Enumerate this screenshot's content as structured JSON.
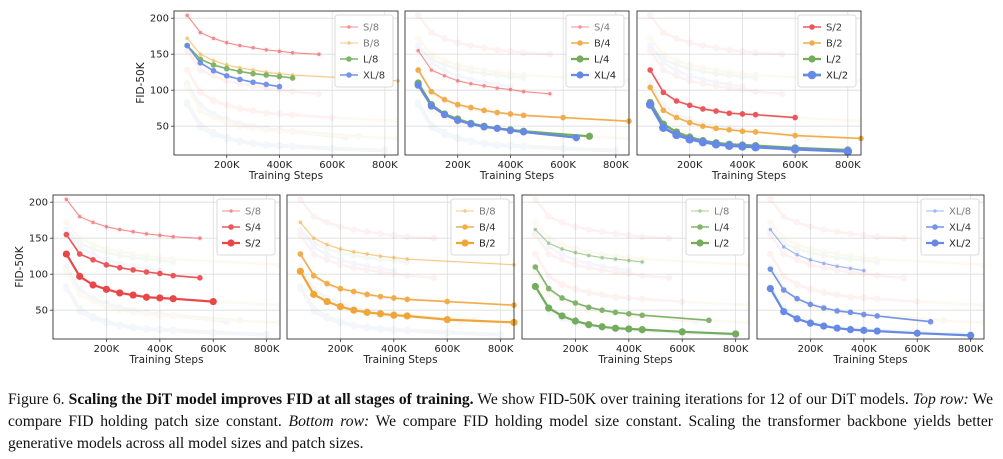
{
  "caption": {
    "figure_label": "Figure 6.",
    "title": "Scaling the DiT model improves FID at all stages of training.",
    "sentence1": "We show FID-50K over training iterations for 12 of our DiT models.",
    "top_row_label": "Top row:",
    "top_row_text": "We compare FID holding patch size constant.",
    "bottom_row_label": "Bottom row:",
    "bottom_row_text": "We compare FID holding model size constant. Scaling the transformer backbone yields better generative models across all model sizes and patch sizes."
  },
  "colors": {
    "S": "#e8474a",
    "B": "#f0a637",
    "L": "#73ad5c",
    "XL": "#6689e6",
    "grid": "#dddddd",
    "axis": "#333333"
  },
  "chart_data": [
    {
      "type": "line",
      "row": "top",
      "xlabel": "Training Steps",
      "ylabel": "FID-50K",
      "xlim": [
        0,
        850000
      ],
      "ylim": [
        10,
        210
      ],
      "xticks": [
        "200K",
        "400K",
        "600K",
        "800K"
      ],
      "yticks": [
        "50",
        "100",
        "150",
        "200"
      ],
      "legend": "top-right",
      "grid": true,
      "series": [
        {
          "name": "S/8",
          "color": "#e8474a",
          "weight": 1,
          "x": [
            50000,
            100000,
            150000,
            200000,
            250000,
            300000,
            350000,
            400000,
            450000,
            550000
          ],
          "y": [
            204,
            180,
            172,
            166,
            162,
            159,
            156,
            154,
            152,
            150
          ]
        },
        {
          "name": "B/8",
          "color": "#f0a637",
          "weight": 1,
          "x": [
            50000,
            100000,
            150000,
            200000,
            250000,
            300000,
            350000,
            400000,
            450000,
            850000
          ],
          "y": [
            172,
            150,
            141,
            135,
            131,
            128,
            125,
            123,
            121,
            113
          ]
        },
        {
          "name": "L/8",
          "color": "#73ad5c",
          "weight": 2,
          "x": [
            50000,
            100000,
            150000,
            200000,
            250000,
            300000,
            350000,
            400000,
            450000
          ],
          "y": [
            162,
            143,
            135,
            130,
            126,
            123,
            121,
            119,
            117
          ]
        },
        {
          "name": "XL/8",
          "color": "#6689e6",
          "weight": 2,
          "x": [
            50000,
            100000,
            150000,
            200000,
            250000,
            300000,
            350000,
            400000
          ],
          "y": [
            162,
            138,
            127,
            120,
            115,
            111,
            108,
            105
          ]
        }
      ]
    },
    {
      "type": "line",
      "row": "top",
      "xlabel": "Training Steps",
      "ylabel": "",
      "xlim": [
        0,
        850000
      ],
      "ylim": [
        10,
        210
      ],
      "xticks": [
        "200K",
        "400K",
        "600K",
        "800K"
      ],
      "yticks": [],
      "legend": "top-right",
      "grid": true,
      "series": [
        {
          "name": "S/4",
          "color": "#e8474a",
          "weight": 1,
          "x": [
            50000,
            100000,
            150000,
            200000,
            250000,
            300000,
            350000,
            400000,
            450000,
            550000
          ],
          "y": [
            155,
            128,
            120,
            113,
            109,
            106,
            103,
            101,
            98,
            95
          ]
        },
        {
          "name": "B/4",
          "color": "#f0a637",
          "weight": 2,
          "x": [
            50000,
            100000,
            150000,
            200000,
            250000,
            300000,
            350000,
            400000,
            450000,
            600000,
            850000
          ],
          "y": [
            128,
            98,
            87,
            80,
            76,
            72,
            69,
            67,
            65,
            62,
            57
          ]
        },
        {
          "name": "L/4",
          "color": "#73ad5c",
          "weight": 3,
          "x": [
            50000,
            100000,
            150000,
            200000,
            250000,
            300000,
            350000,
            400000,
            450000,
            700000
          ],
          "y": [
            110,
            80,
            67,
            60,
            54,
            50,
            47,
            45,
            43,
            36
          ]
        },
        {
          "name": "XL/4",
          "color": "#6689e6",
          "weight": 3,
          "x": [
            50000,
            100000,
            150000,
            200000,
            250000,
            300000,
            350000,
            400000,
            450000,
            650000
          ],
          "y": [
            107,
            78,
            66,
            58,
            53,
            49,
            47,
            44,
            42,
            34
          ]
        }
      ]
    },
    {
      "type": "line",
      "row": "top",
      "xlabel": "Training Steps",
      "ylabel": "",
      "xlim": [
        0,
        850000
      ],
      "ylim": [
        10,
        210
      ],
      "xticks": [
        "200K",
        "400K",
        "600K",
        "800K"
      ],
      "yticks": [],
      "legend": "top-right",
      "grid": true,
      "series": [
        {
          "name": "S/2",
          "color": "#e8474a",
          "weight": 2,
          "x": [
            50000,
            100000,
            150000,
            200000,
            250000,
            300000,
            350000,
            400000,
            450000,
            600000
          ],
          "y": [
            128,
            97,
            85,
            79,
            74,
            71,
            68,
            67,
            66,
            62
          ]
        },
        {
          "name": "B/2",
          "color": "#f0a637",
          "weight": 2,
          "x": [
            50000,
            100000,
            150000,
            200000,
            250000,
            300000,
            350000,
            400000,
            450000,
            600000,
            850000
          ],
          "y": [
            104,
            72,
            62,
            55,
            50,
            47,
            45,
            43,
            42,
            37,
            33
          ]
        },
        {
          "name": "L/2",
          "color": "#73ad5c",
          "weight": 3,
          "x": [
            50000,
            100000,
            150000,
            200000,
            250000,
            300000,
            350000,
            400000,
            450000,
            600000,
            800000
          ],
          "y": [
            83,
            53,
            42,
            35,
            30,
            27,
            25,
            24,
            23,
            20,
            17
          ]
        },
        {
          "name": "XL/2",
          "color": "#6689e6",
          "weight": 4,
          "x": [
            50000,
            100000,
            150000,
            200000,
            250000,
            300000,
            350000,
            400000,
            450000,
            600000,
            800000
          ],
          "y": [
            80,
            48,
            38,
            32,
            28,
            25,
            23,
            22,
            21,
            18,
            15
          ]
        }
      ]
    },
    {
      "type": "line",
      "row": "bottom",
      "xlabel": "Training Steps",
      "ylabel": "FID-50K",
      "xlim": [
        0,
        850000
      ],
      "ylim": [
        10,
        210
      ],
      "xticks": [
        "200K",
        "400K",
        "600K",
        "800K"
      ],
      "yticks": [
        "50",
        "100",
        "150",
        "200"
      ],
      "legend": "top-right",
      "grid": true,
      "series": [
        {
          "name": "S/8",
          "color": "#e8474a",
          "weight": 1,
          "x": [
            50000,
            100000,
            150000,
            200000,
            250000,
            300000,
            350000,
            400000,
            450000,
            550000
          ],
          "y": [
            204,
            180,
            172,
            166,
            162,
            159,
            156,
            154,
            152,
            150
          ]
        },
        {
          "name": "S/4",
          "color": "#e8474a",
          "weight": 2,
          "x": [
            50000,
            100000,
            150000,
            200000,
            250000,
            300000,
            350000,
            400000,
            450000,
            550000
          ],
          "y": [
            155,
            128,
            120,
            113,
            109,
            106,
            103,
            101,
            98,
            95
          ]
        },
        {
          "name": "S/2",
          "color": "#e8474a",
          "weight": 3,
          "x": [
            50000,
            100000,
            150000,
            200000,
            250000,
            300000,
            350000,
            400000,
            450000,
            600000
          ],
          "y": [
            128,
            97,
            85,
            79,
            74,
            71,
            68,
            67,
            66,
            62
          ]
        }
      ]
    },
    {
      "type": "line",
      "row": "bottom",
      "xlabel": "Training Steps",
      "ylabel": "",
      "xlim": [
        0,
        850000
      ],
      "ylim": [
        10,
        210
      ],
      "xticks": [
        "200K",
        "400K",
        "600K",
        "800K"
      ],
      "yticks": [],
      "legend": "top-right",
      "grid": true,
      "series": [
        {
          "name": "B/8",
          "color": "#f0a637",
          "weight": 1,
          "x": [
            50000,
            100000,
            150000,
            200000,
            250000,
            300000,
            350000,
            400000,
            450000,
            850000
          ],
          "y": [
            172,
            150,
            141,
            135,
            131,
            128,
            125,
            123,
            121,
            113
          ]
        },
        {
          "name": "B/4",
          "color": "#f0a637",
          "weight": 2,
          "x": [
            50000,
            100000,
            150000,
            200000,
            250000,
            300000,
            350000,
            400000,
            450000,
            600000,
            850000
          ],
          "y": [
            128,
            98,
            87,
            80,
            76,
            72,
            69,
            67,
            65,
            62,
            57
          ]
        },
        {
          "name": "B/2",
          "color": "#f0a637",
          "weight": 3,
          "x": [
            50000,
            100000,
            150000,
            200000,
            250000,
            300000,
            350000,
            400000,
            450000,
            600000,
            850000
          ],
          "y": [
            104,
            72,
            62,
            55,
            50,
            47,
            45,
            43,
            42,
            37,
            33
          ]
        }
      ]
    },
    {
      "type": "line",
      "row": "bottom",
      "xlabel": "Training Steps",
      "ylabel": "",
      "xlim": [
        0,
        850000
      ],
      "ylim": [
        10,
        210
      ],
      "xticks": [
        "200K",
        "400K",
        "600K",
        "800K"
      ],
      "yticks": [],
      "legend": "top-right",
      "grid": true,
      "series": [
        {
          "name": "L/8",
          "color": "#73ad5c",
          "weight": 1,
          "x": [
            50000,
            100000,
            150000,
            200000,
            250000,
            300000,
            350000,
            400000,
            450000
          ],
          "y": [
            162,
            143,
            135,
            130,
            126,
            123,
            121,
            119,
            117
          ]
        },
        {
          "name": "L/4",
          "color": "#73ad5c",
          "weight": 2,
          "x": [
            50000,
            100000,
            150000,
            200000,
            250000,
            300000,
            350000,
            400000,
            450000,
            700000
          ],
          "y": [
            110,
            80,
            67,
            60,
            54,
            50,
            47,
            45,
            43,
            36
          ]
        },
        {
          "name": "L/2",
          "color": "#73ad5c",
          "weight": 3,
          "x": [
            50000,
            100000,
            150000,
            200000,
            250000,
            300000,
            350000,
            400000,
            450000,
            600000,
            800000
          ],
          "y": [
            83,
            53,
            42,
            35,
            30,
            27,
            25,
            24,
            23,
            20,
            17
          ]
        }
      ]
    },
    {
      "type": "line",
      "row": "bottom",
      "xlabel": "Training Steps",
      "ylabel": "",
      "xlim": [
        0,
        850000
      ],
      "ylim": [
        10,
        210
      ],
      "xticks": [
        "200K",
        "400K",
        "600K",
        "800K"
      ],
      "yticks": [],
      "legend": "top-right",
      "grid": true,
      "series": [
        {
          "name": "XL/8",
          "color": "#6689e6",
          "weight": 1,
          "x": [
            50000,
            100000,
            150000,
            200000,
            250000,
            300000,
            350000,
            400000
          ],
          "y": [
            162,
            138,
            127,
            120,
            115,
            111,
            108,
            105
          ]
        },
        {
          "name": "XL/4",
          "color": "#6689e6",
          "weight": 2,
          "x": [
            50000,
            100000,
            150000,
            200000,
            250000,
            300000,
            350000,
            400000,
            450000,
            650000
          ],
          "y": [
            107,
            78,
            66,
            58,
            53,
            49,
            47,
            44,
            42,
            34
          ]
        },
        {
          "name": "XL/2",
          "color": "#6689e6",
          "weight": 3,
          "x": [
            50000,
            100000,
            150000,
            200000,
            250000,
            300000,
            350000,
            400000,
            450000,
            600000,
            800000
          ],
          "y": [
            80,
            48,
            38,
            32,
            28,
            25,
            23,
            22,
            21,
            18,
            15
          ]
        }
      ]
    }
  ]
}
